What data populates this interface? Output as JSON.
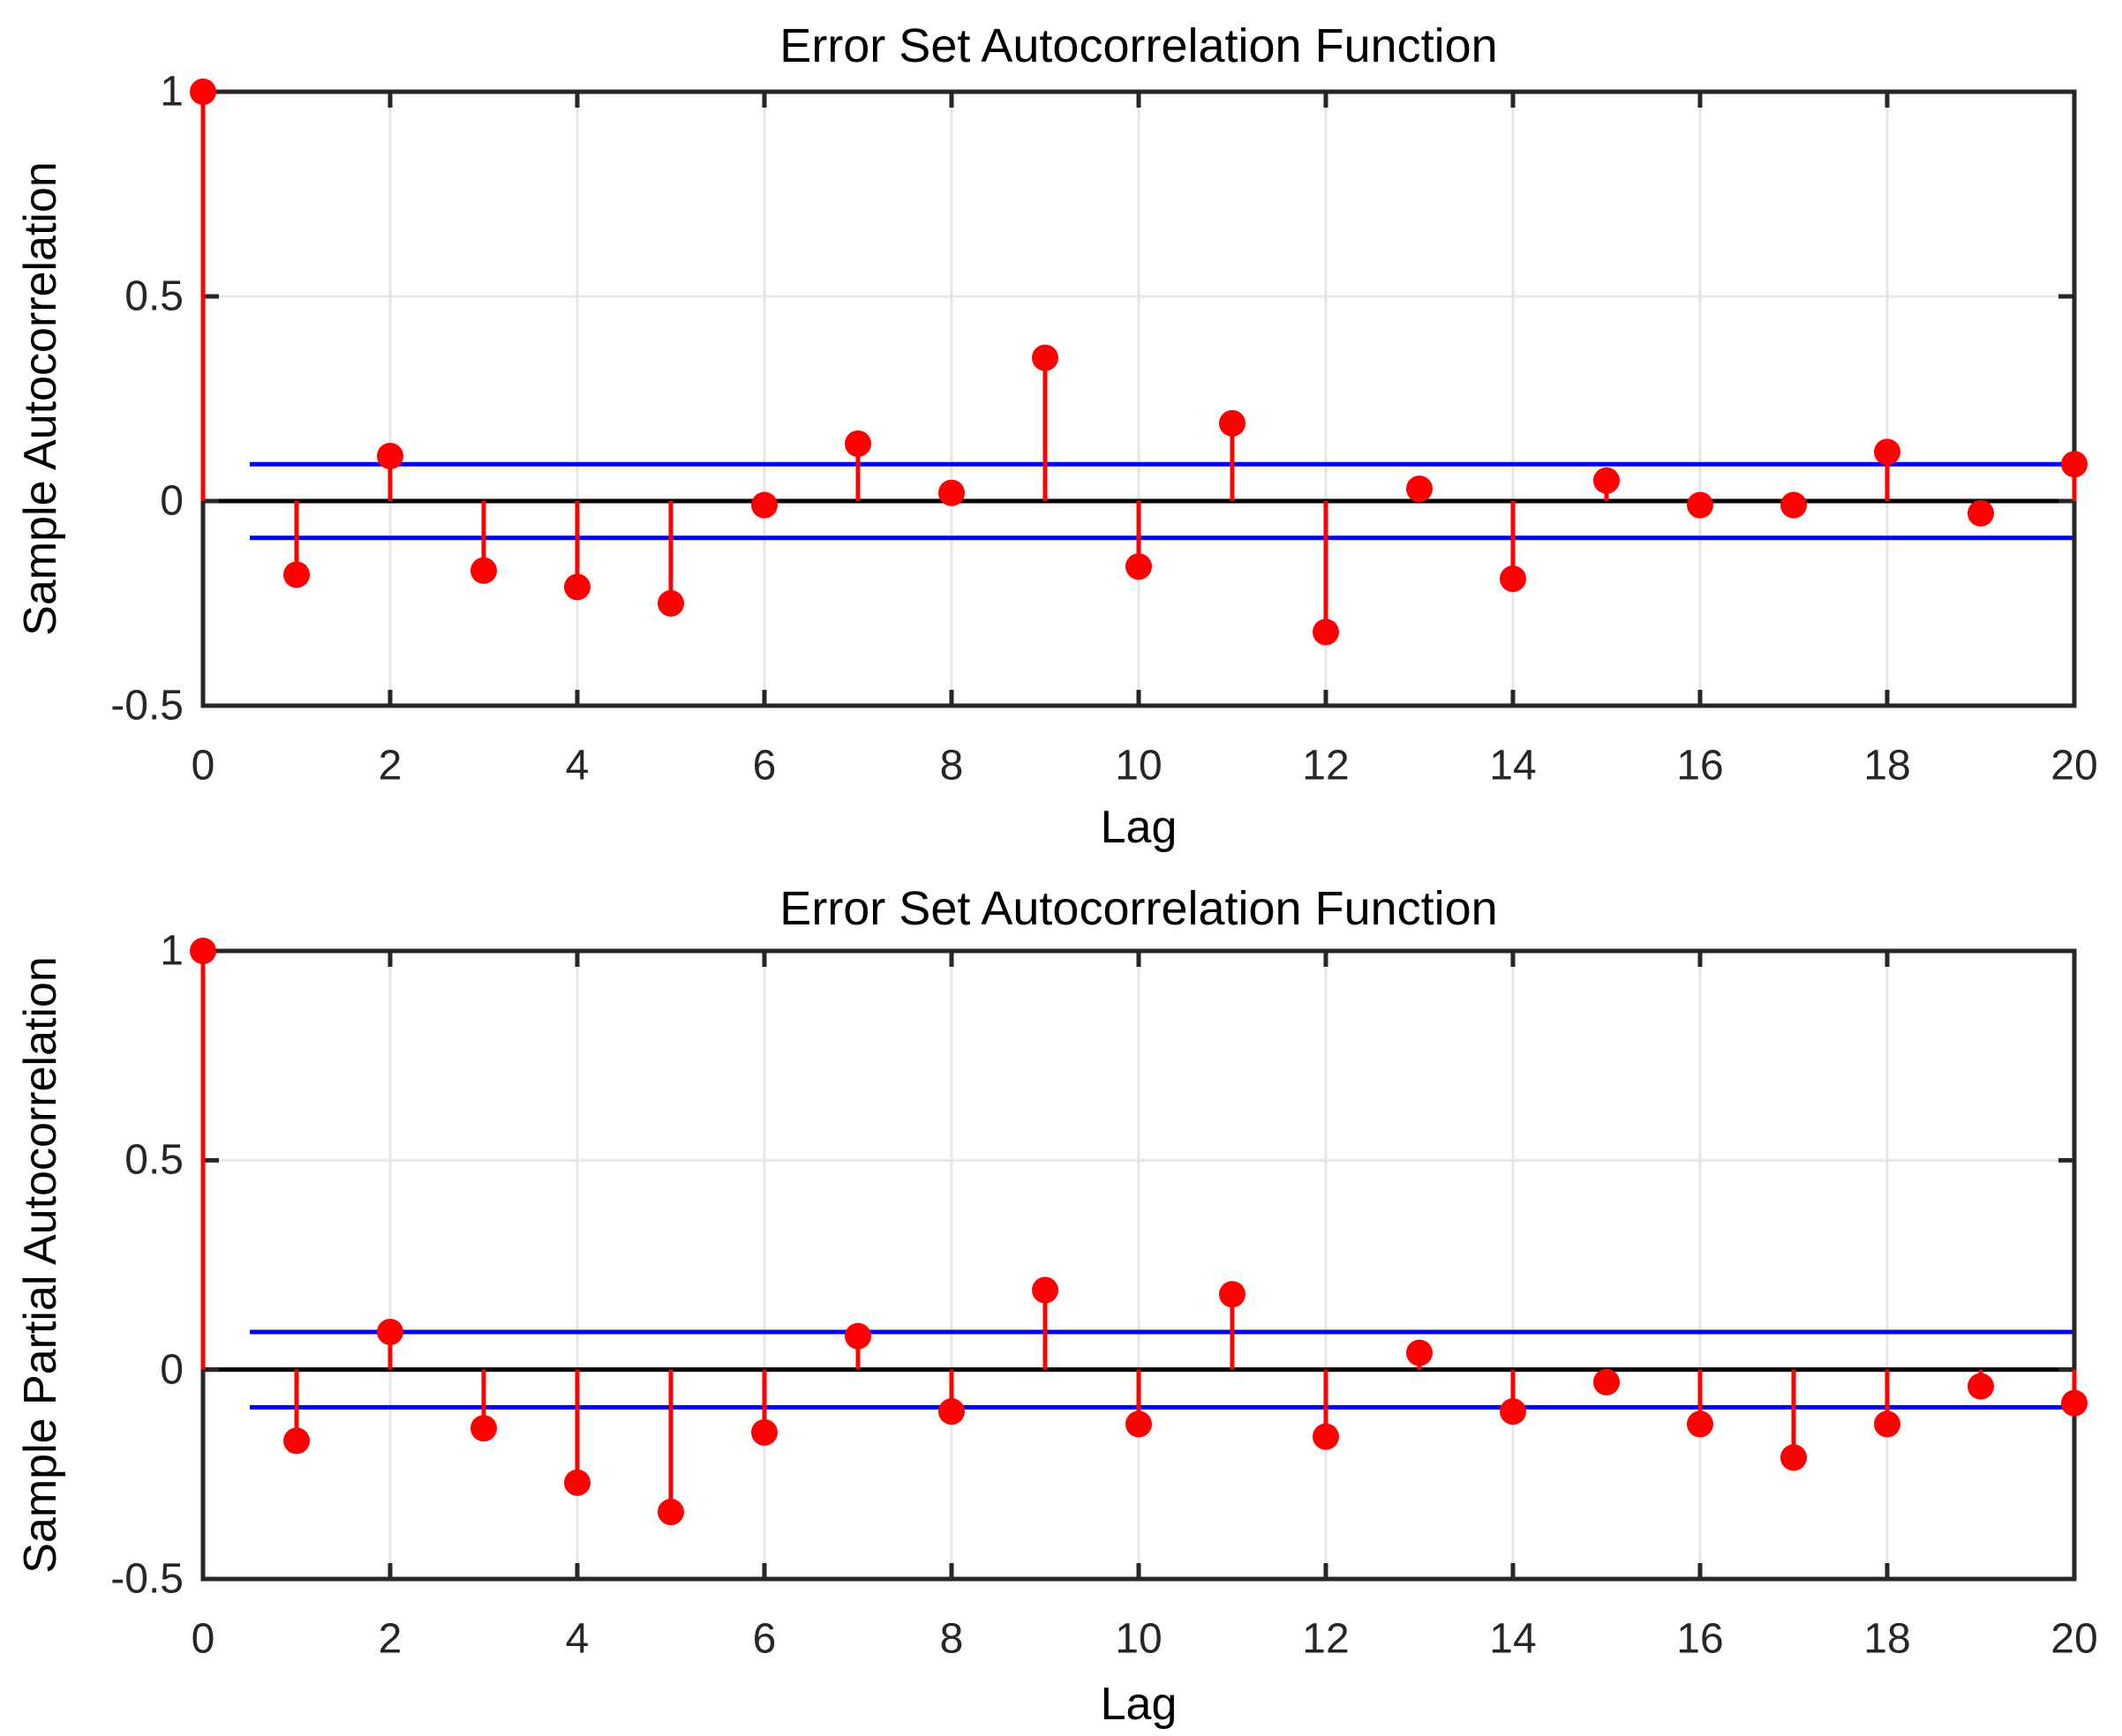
{
  "figure": {
    "background": "#ffffff"
  },
  "colors": {
    "stem": "#ff0000",
    "marker": "#ff0000",
    "confidence_bounds": "#0000ff",
    "zero_line": "#000000",
    "axis": "#262626",
    "grid": "#e6e6e6",
    "tick_text": "#262626",
    "label_text": "#000000"
  },
  "chart_data": [
    {
      "type": "stem",
      "title": "Error Set Autocorrelation Function",
      "xlabel": "Lag",
      "ylabel": "Sample Autocorrelation",
      "x": [
        0,
        1,
        2,
        3,
        4,
        5,
        6,
        7,
        8,
        9,
        10,
        11,
        12,
        13,
        14,
        15,
        16,
        17,
        18,
        19,
        20
      ],
      "values": [
        1.0,
        -0.18,
        0.11,
        -0.17,
        -0.21,
        -0.25,
        -0.01,
        0.14,
        0.02,
        0.35,
        -0.16,
        0.19,
        -0.32,
        0.03,
        -0.19,
        0.05,
        -0.01,
        -0.01,
        0.12,
        -0.03,
        0.09
      ],
      "confidence_bounds": [
        0.09,
        -0.09
      ],
      "bounds_x_range": [
        0.5,
        20
      ],
      "xlim": [
        0,
        20
      ],
      "ylim": [
        -0.5,
        1
      ],
      "xticks": [
        0,
        2,
        4,
        6,
        8,
        10,
        12,
        14,
        16,
        18,
        20
      ],
      "xtick_labels": [
        "0",
        "2",
        "4",
        "6",
        "8",
        "10",
        "12",
        "14",
        "16",
        "18",
        "20"
      ],
      "yticks": [
        -0.5,
        0,
        0.5,
        1
      ],
      "ytick_labels": [
        "-0.5",
        "0",
        "0.5",
        "1"
      ],
      "grid": true,
      "legend": "none"
    },
    {
      "type": "stem",
      "title": "Error Set Autocorrelation Function",
      "xlabel": "Lag",
      "ylabel": "Sample Partial Autocorrelation",
      "x": [
        0,
        1,
        2,
        3,
        4,
        5,
        6,
        7,
        8,
        9,
        10,
        11,
        12,
        13,
        14,
        15,
        16,
        17,
        18,
        19,
        20
      ],
      "values": [
        1.0,
        -0.17,
        0.09,
        -0.14,
        -0.27,
        -0.34,
        -0.15,
        0.08,
        -0.1,
        0.19,
        -0.13,
        0.18,
        -0.16,
        0.04,
        -0.1,
        -0.03,
        -0.13,
        -0.21,
        -0.13,
        -0.04,
        -0.08
      ],
      "confidence_bounds": [
        0.09,
        -0.09
      ],
      "bounds_x_range": [
        0.5,
        20
      ],
      "xlim": [
        0,
        20
      ],
      "ylim": [
        -0.5,
        1
      ],
      "xticks": [
        0,
        2,
        4,
        6,
        8,
        10,
        12,
        14,
        16,
        18,
        20
      ],
      "xtick_labels": [
        "0",
        "2",
        "4",
        "6",
        "8",
        "10",
        "12",
        "14",
        "16",
        "18",
        "20"
      ],
      "yticks": [
        -0.5,
        0,
        0.5,
        1
      ],
      "ytick_labels": [
        "-0.5",
        "0",
        "0.5",
        "1"
      ],
      "grid": true,
      "legend": "none"
    }
  ]
}
